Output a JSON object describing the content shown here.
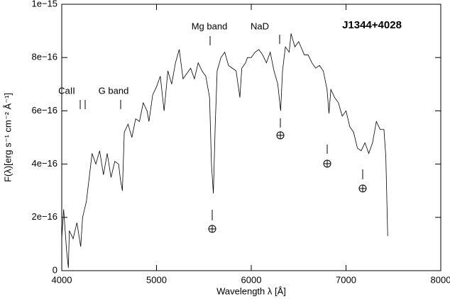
{
  "chart_data": {
    "type": "line",
    "title": "J1344+4028",
    "x_label": "Wavelength λ [Å]",
    "y_label": "F(λ)[erg s⁻¹ cm⁻² Å⁻¹]",
    "annotations": [
      "CaII",
      "G band",
      "Mg band",
      "NaD"
    ],
    "color": "#000000",
    "xlim": [
      4000,
      8000
    ],
    "xticks": [
      4000,
      5000,
      6000,
      7000,
      8000
    ],
    "ylim": [
      0,
      1e-15
    ],
    "yticks": [
      0,
      {
        "value": 2e-16,
        "label": "2e−16"
      },
      {
        "value": 4e-16,
        "label": "4e−16"
      },
      {
        "value": 6e-16,
        "label": "6e−16"
      },
      {
        "value": 8e-16,
        "label": "8e−16"
      },
      {
        "value": 1e-15,
        "label": "1e−15"
      }
    ],
    "x": [
      4000,
      4020,
      4050,
      4070,
      4080,
      4120,
      4160,
      4200,
      4220,
      4260,
      4290,
      4320,
      4360,
      4400,
      4440,
      4480,
      4520,
      4560,
      4600,
      4620,
      4640,
      4660,
      4700,
      4740,
      4780,
      4820,
      4860,
      4900,
      4920,
      4960,
      5000,
      5040,
      5080,
      5120,
      5160,
      5200,
      5240,
      5280,
      5320,
      5360,
      5400,
      5440,
      5480,
      5520,
      5560,
      5580,
      5600,
      5620,
      5640,
      5680,
      5720,
      5760,
      5800,
      5840,
      5880,
      5900,
      5940,
      5960,
      6000,
      6040,
      6080,
      6120,
      6160,
      6200,
      6240,
      6280,
      6310,
      6330,
      6360,
      6400,
      6420,
      6460,
      6500,
      6560,
      6600,
      6640,
      6680,
      6720,
      6760,
      6800,
      6820,
      6840,
      6880,
      6920,
      6960,
      7000,
      7040,
      7080,
      7120,
      7160,
      7200,
      7240,
      7280,
      7320,
      7360,
      7400,
      7420,
      7440
    ],
    "values": [
      1.2e-16,
      2.3e-16,
      8e-17,
      1e-17,
      1.5e-16,
      1.2e-16,
      1.8e-16,
      9e-17,
      2e-16,
      2.6e-16,
      3.5e-16,
      4.4e-16,
      4e-16,
      4.5e-16,
      3.6e-16,
      4.4e-16,
      3.5e-16,
      4.1e-16,
      4e-16,
      3.4e-16,
      3e-16,
      5.2e-16,
      5.5e-16,
      5e-16,
      5.7e-16,
      5.6e-16,
      6.3e-16,
      6e-16,
      5.6e-16,
      6.6e-16,
      6.9e-16,
      7.3e-16,
      6e-16,
      7.5e-16,
      7e-16,
      7.8e-16,
      8.3e-16,
      7.2e-16,
      7.4e-16,
      7.6e-16,
      7.2e-16,
      7.8e-16,
      7.5e-16,
      7.3e-16,
      6.5e-16,
      4e-16,
      2.9e-16,
      5.5e-16,
      7.5e-16,
      8e-16,
      8.2e-16,
      7.7e-16,
      7.6e-16,
      7.5e-16,
      6.5e-16,
      7.6e-16,
      7.8e-16,
      8e-16,
      8e-16,
      8.2e-16,
      8.3e-16,
      8.1e-16,
      7.8e-16,
      8.2e-16,
      7.5e-16,
      7e-16,
      6e-16,
      7.5e-16,
      8.4e-16,
      8.2e-16,
      8.9e-16,
      8.4e-16,
      8.6e-16,
      8.1e-16,
      8.1e-16,
      7.8e-16,
      7.6e-16,
      7.7e-16,
      7.5e-16,
      6.8e-16,
      5.9e-16,
      6.8e-16,
      6.5e-16,
      6.3e-16,
      5.8e-16,
      6e-16,
      5.4e-16,
      5.2e-16,
      4.6e-16,
      4.5e-16,
      4.8e-16,
      4.4e-16,
      4.8e-16,
      5.6e-16,
      5.3e-16,
      5.3e-16,
      4.3e-16,
      1.3e-16
    ]
  }
}
